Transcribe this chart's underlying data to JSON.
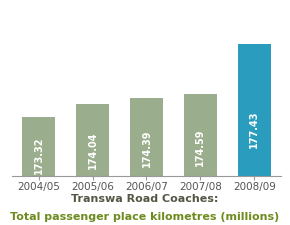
{
  "categories": [
    "2004/05",
    "2005/06",
    "2006/07",
    "2007/08",
    "2008/09"
  ],
  "values": [
    173.32,
    174.04,
    174.39,
    174.59,
    177.43
  ],
  "bar_colors": [
    "#9aad8c",
    "#9aad8c",
    "#9aad8c",
    "#9aad8c",
    "#2a9dbf"
  ],
  "value_labels": [
    "173.32",
    "174.04",
    "174.39",
    "174.59",
    "177.43"
  ],
  "label_color": "#ffffff",
  "title_line1": "Transwa Road Coaches:",
  "title_line2": "Total passenger place kilometres (millions)",
  "title_color1": "#555544",
  "title_color2": "#6e8c1e",
  "ymin": 170.0,
  "ymax": 179.5,
  "background_color": "#ffffff",
  "tick_label_color": "#555555",
  "bar_label_fontsize": 7.0,
  "title_fontsize1": 8.0,
  "title_fontsize2": 8.0,
  "bar_width": 0.62
}
